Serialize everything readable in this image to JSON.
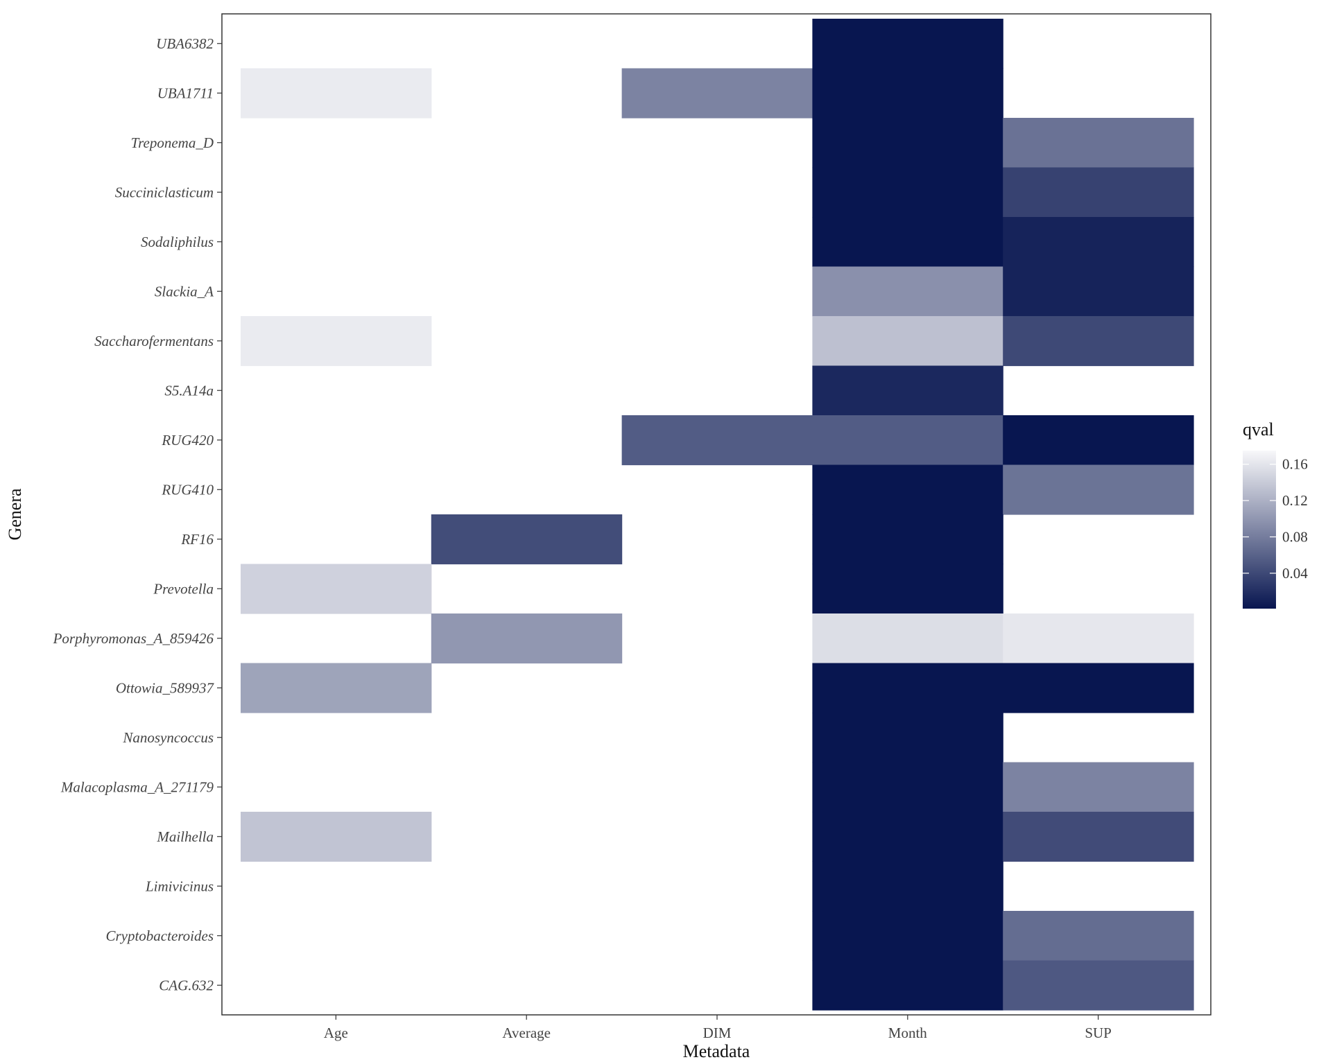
{
  "chart_data": {
    "type": "heatmap",
    "xlabel": "Metadata",
    "ylabel": "Genera",
    "x_categories": [
      "Age",
      "Average",
      "DIM",
      "Month",
      "SUP"
    ],
    "y_categories": [
      "UBA6382",
      "UBA1711",
      "Treponema_D",
      "Succiniclasticum",
      "Sodaliphilus",
      "Slackia_A",
      "Saccharofermentans",
      "S5.A14a",
      "RUG420",
      "RUG410",
      "RF16",
      "Prevotella",
      "Porphyromonas_A_859426",
      "Ottowia_589937",
      "Nanosyncoccus",
      "Malacoplasma_A_271179",
      "Mailhella",
      "Limivicinus",
      "Cryptobacteroides",
      "CAG.632"
    ],
    "cells": [
      {
        "x": "Month",
        "y": "UBA6382",
        "value": 0.001
      },
      {
        "x": "Age",
        "y": "UBA1711",
        "value": 0.165
      },
      {
        "x": "DIM",
        "y": "UBA1711",
        "value": 0.085
      },
      {
        "x": "Month",
        "y": "UBA1711",
        "value": 0.001
      },
      {
        "x": "Month",
        "y": "Treponema_D",
        "value": 0.001
      },
      {
        "x": "SUP",
        "y": "Treponema_D",
        "value": 0.072
      },
      {
        "x": "Month",
        "y": "Succiniclasticum",
        "value": 0.001
      },
      {
        "x": "SUP",
        "y": "Succiniclasticum",
        "value": 0.035
      },
      {
        "x": "Month",
        "y": "Sodaliphilus",
        "value": 0.001
      },
      {
        "x": "SUP",
        "y": "Sodaliphilus",
        "value": 0.011
      },
      {
        "x": "Month",
        "y": "Slackia_A",
        "value": 0.095
      },
      {
        "x": "SUP",
        "y": "Slackia_A",
        "value": 0.011
      },
      {
        "x": "Age",
        "y": "Saccharofermentans",
        "value": 0.165
      },
      {
        "x": "Month",
        "y": "Saccharofermentans",
        "value": 0.132
      },
      {
        "x": "SUP",
        "y": "Saccharofermentans",
        "value": 0.04
      },
      {
        "x": "Month",
        "y": "S5.A14a",
        "value": 0.015
      },
      {
        "x": "DIM",
        "y": "RUG420",
        "value": 0.055
      },
      {
        "x": "Month",
        "y": "RUG420",
        "value": 0.055
      },
      {
        "x": "SUP",
        "y": "RUG420",
        "value": 0.001
      },
      {
        "x": "Month",
        "y": "RUG410",
        "value": 0.001
      },
      {
        "x": "SUP",
        "y": "RUG410",
        "value": 0.073
      },
      {
        "x": "Average",
        "y": "RF16",
        "value": 0.043
      },
      {
        "x": "Month",
        "y": "RF16",
        "value": 0.001
      },
      {
        "x": "Age",
        "y": "Prevotella",
        "value": 0.145
      },
      {
        "x": "Month",
        "y": "Prevotella",
        "value": 0.001
      },
      {
        "x": "Average",
        "y": "Porphyromonas_A_859426",
        "value": 0.1
      },
      {
        "x": "Month",
        "y": "Porphyromonas_A_859426",
        "value": 0.155
      },
      {
        "x": "SUP",
        "y": "Porphyromonas_A_859426",
        "value": 0.162
      },
      {
        "x": "Age",
        "y": "Ottowia_589937",
        "value": 0.11
      },
      {
        "x": "Month",
        "y": "Ottowia_589937",
        "value": 0.001
      },
      {
        "x": "SUP",
        "y": "Ottowia_589937",
        "value": 0.001
      },
      {
        "x": "Month",
        "y": "Nanosyncoccus",
        "value": 0.001
      },
      {
        "x": "Month",
        "y": "Malacoplasma_A_271179",
        "value": 0.001
      },
      {
        "x": "SUP",
        "y": "Malacoplasma_A_271179",
        "value": 0.085
      },
      {
        "x": "Age",
        "y": "Mailhella",
        "value": 0.135
      },
      {
        "x": "Month",
        "y": "Mailhella",
        "value": 0.001
      },
      {
        "x": "SUP",
        "y": "Mailhella",
        "value": 0.042
      },
      {
        "x": "Month",
        "y": "Limivicinus",
        "value": 0.001
      },
      {
        "x": "Month",
        "y": "Cryptobacteroides",
        "value": 0.001
      },
      {
        "x": "SUP",
        "y": "Cryptobacteroides",
        "value": 0.068
      },
      {
        "x": "Month",
        "y": "CAG.632",
        "value": 0.001
      },
      {
        "x": "SUP",
        "y": "CAG.632",
        "value": 0.052
      }
    ],
    "legend": {
      "title": "qval",
      "placement": "right",
      "ticks": [
        0.04,
        0.08,
        0.12,
        0.16
      ],
      "tick_labels": [
        "0.04",
        "0.08",
        "0.12",
        "0.16"
      ],
      "range": [
        0.001,
        0.175
      ],
      "color_low": "#081650",
      "color_high": "#f8f8fa"
    },
    "grid": false
  }
}
